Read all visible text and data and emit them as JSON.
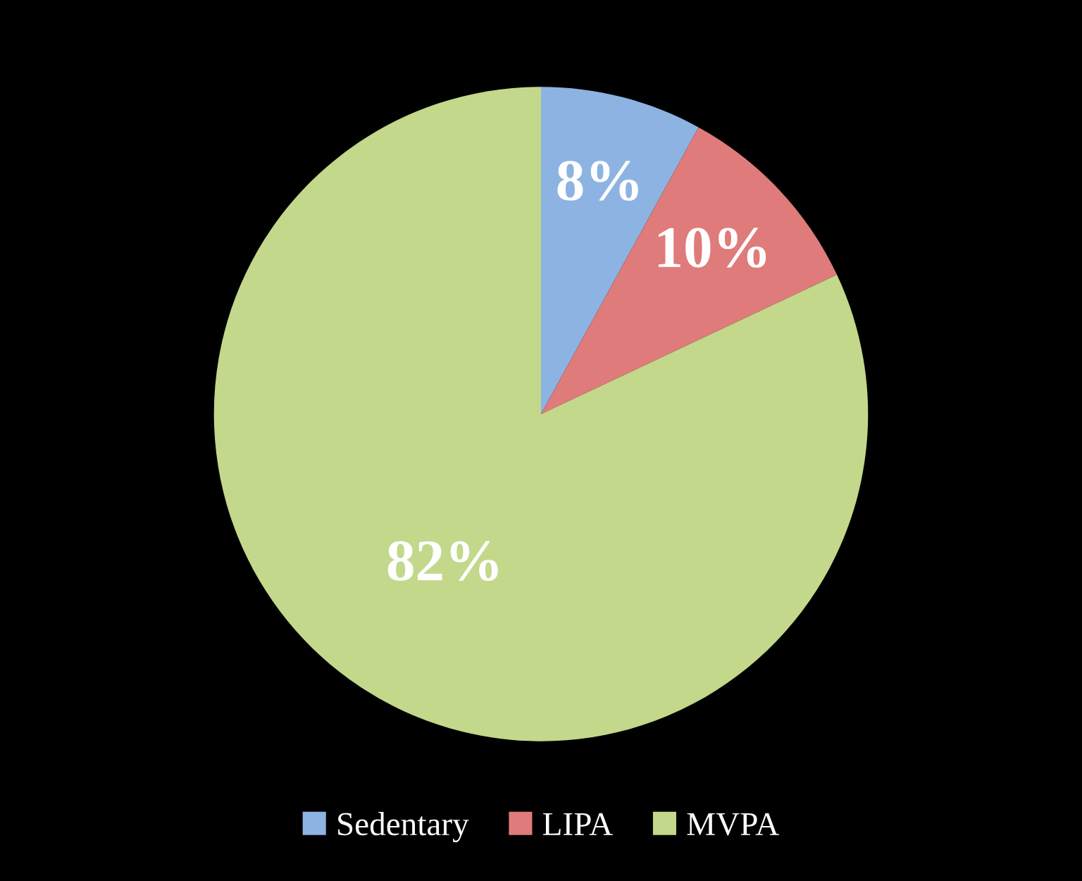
{
  "chart_data": {
    "type": "pie",
    "categories": [
      "Sedentary",
      "LIPA",
      "MVPA"
    ],
    "values": [
      8,
      10,
      82
    ],
    "colors": [
      "#8db3e2",
      "#e07b7b",
      "#c3d88a"
    ],
    "value_labels": [
      "8%",
      "10%",
      "82%"
    ],
    "legend": "bottom"
  }
}
